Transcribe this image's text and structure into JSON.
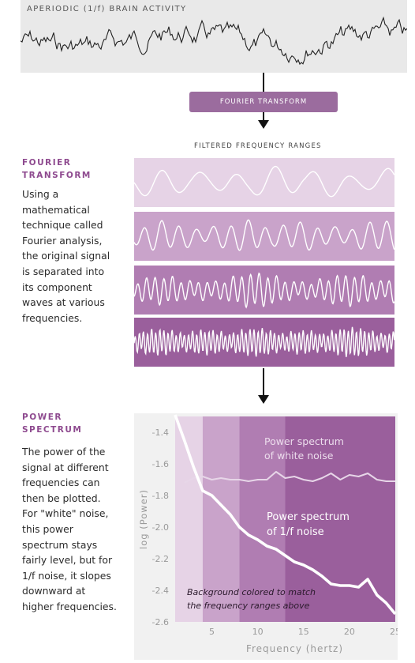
{
  "raw_signal": {
    "title": "APERIODIC (1/f) BRAIN ACTIVITY"
  },
  "transform_box": {
    "label": "FOURIER TRANSFORM"
  },
  "filtered": {
    "label": "FILTERED FREQUENCY RANGES"
  },
  "fourier_section": {
    "title_line1": "FOURIER",
    "title_line2": "TRANSFORM",
    "body": [
      "Using a",
      "mathematical",
      "technique called",
      "Fourier analysis,",
      "the original signal",
      "is separated into",
      "its component",
      "waves at various",
      "frequencies."
    ]
  },
  "power_section": {
    "title_line1": "POWER",
    "title_line2": "SPECTRUM",
    "body": [
      "The power of the",
      "signal at different",
      "frequencies can",
      "then be plotted.",
      "For \"white\" noise,",
      "this power",
      "spectrum stays",
      "fairly level, but for",
      "1/f noise, it slopes",
      "downward at",
      "higher frequencies."
    ]
  },
  "bands": {
    "colors": [
      "#e6d3e6",
      "#c9a3ca",
      "#b07db2",
      "#9a5f9c"
    ]
  },
  "chart_data": {
    "type": "line",
    "xlabel": "Frequency (hertz)",
    "ylabel": "log (Power)",
    "xlim": [
      1,
      25
    ],
    "ylim": [
      -2.6,
      -1.3
    ],
    "xticks": [
      "5",
      "10",
      "15",
      "20",
      "25"
    ],
    "yticks": [
      "-1.4",
      "-1.6",
      "-1.8",
      "-2.0",
      "-2.2",
      "-2.4",
      "-2.6"
    ],
    "band_regions": [
      {
        "from": 1,
        "to": 4,
        "color": "#e6d3e6"
      },
      {
        "from": 4,
        "to": 8,
        "color": "#c9a3ca"
      },
      {
        "from": 8,
        "to": 13,
        "color": "#b07db2"
      },
      {
        "from": 13,
        "to": 25,
        "color": "#9a5f9c"
      }
    ],
    "series": [
      {
        "name": "Power spectrum of white noise",
        "x": [
          2,
          3,
          4,
          5,
          6,
          7,
          8,
          9,
          10,
          11,
          12,
          13,
          14,
          15,
          16,
          17,
          18,
          19,
          20,
          21,
          22,
          23,
          24,
          25
        ],
        "y": [
          -1.72,
          -1.69,
          -1.68,
          -1.7,
          -1.69,
          -1.7,
          -1.7,
          -1.71,
          -1.7,
          -1.7,
          -1.65,
          -1.69,
          -1.68,
          -1.7,
          -1.71,
          -1.69,
          -1.66,
          -1.7,
          -1.67,
          -1.68,
          -1.66,
          -1.7,
          -1.71,
          -1.71
        ]
      },
      {
        "name": "Power spectrum of 1/f noise",
        "x": [
          1,
          2,
          3,
          4,
          5,
          6,
          7,
          8,
          9,
          10,
          11,
          12,
          13,
          14,
          15,
          16,
          17,
          18,
          19,
          20,
          21,
          22,
          23,
          24,
          25
        ],
        "y": [
          -1.29,
          -1.45,
          -1.62,
          -1.77,
          -1.8,
          -1.86,
          -1.92,
          -2.0,
          -2.05,
          -2.08,
          -2.12,
          -2.14,
          -2.18,
          -2.22,
          -2.24,
          -2.27,
          -2.31,
          -2.36,
          -2.37,
          -2.37,
          -2.38,
          -2.33,
          -2.43,
          -2.48,
          -2.55
        ]
      }
    ],
    "annotations": {
      "white_line1": "Power spectrum",
      "white_line2": "of white noise",
      "pink_line1": "Power spectrum",
      "pink_line2": "of 1/f noise",
      "note_line1": "Background colored to match",
      "note_line2": "the frequency ranges above"
    }
  }
}
